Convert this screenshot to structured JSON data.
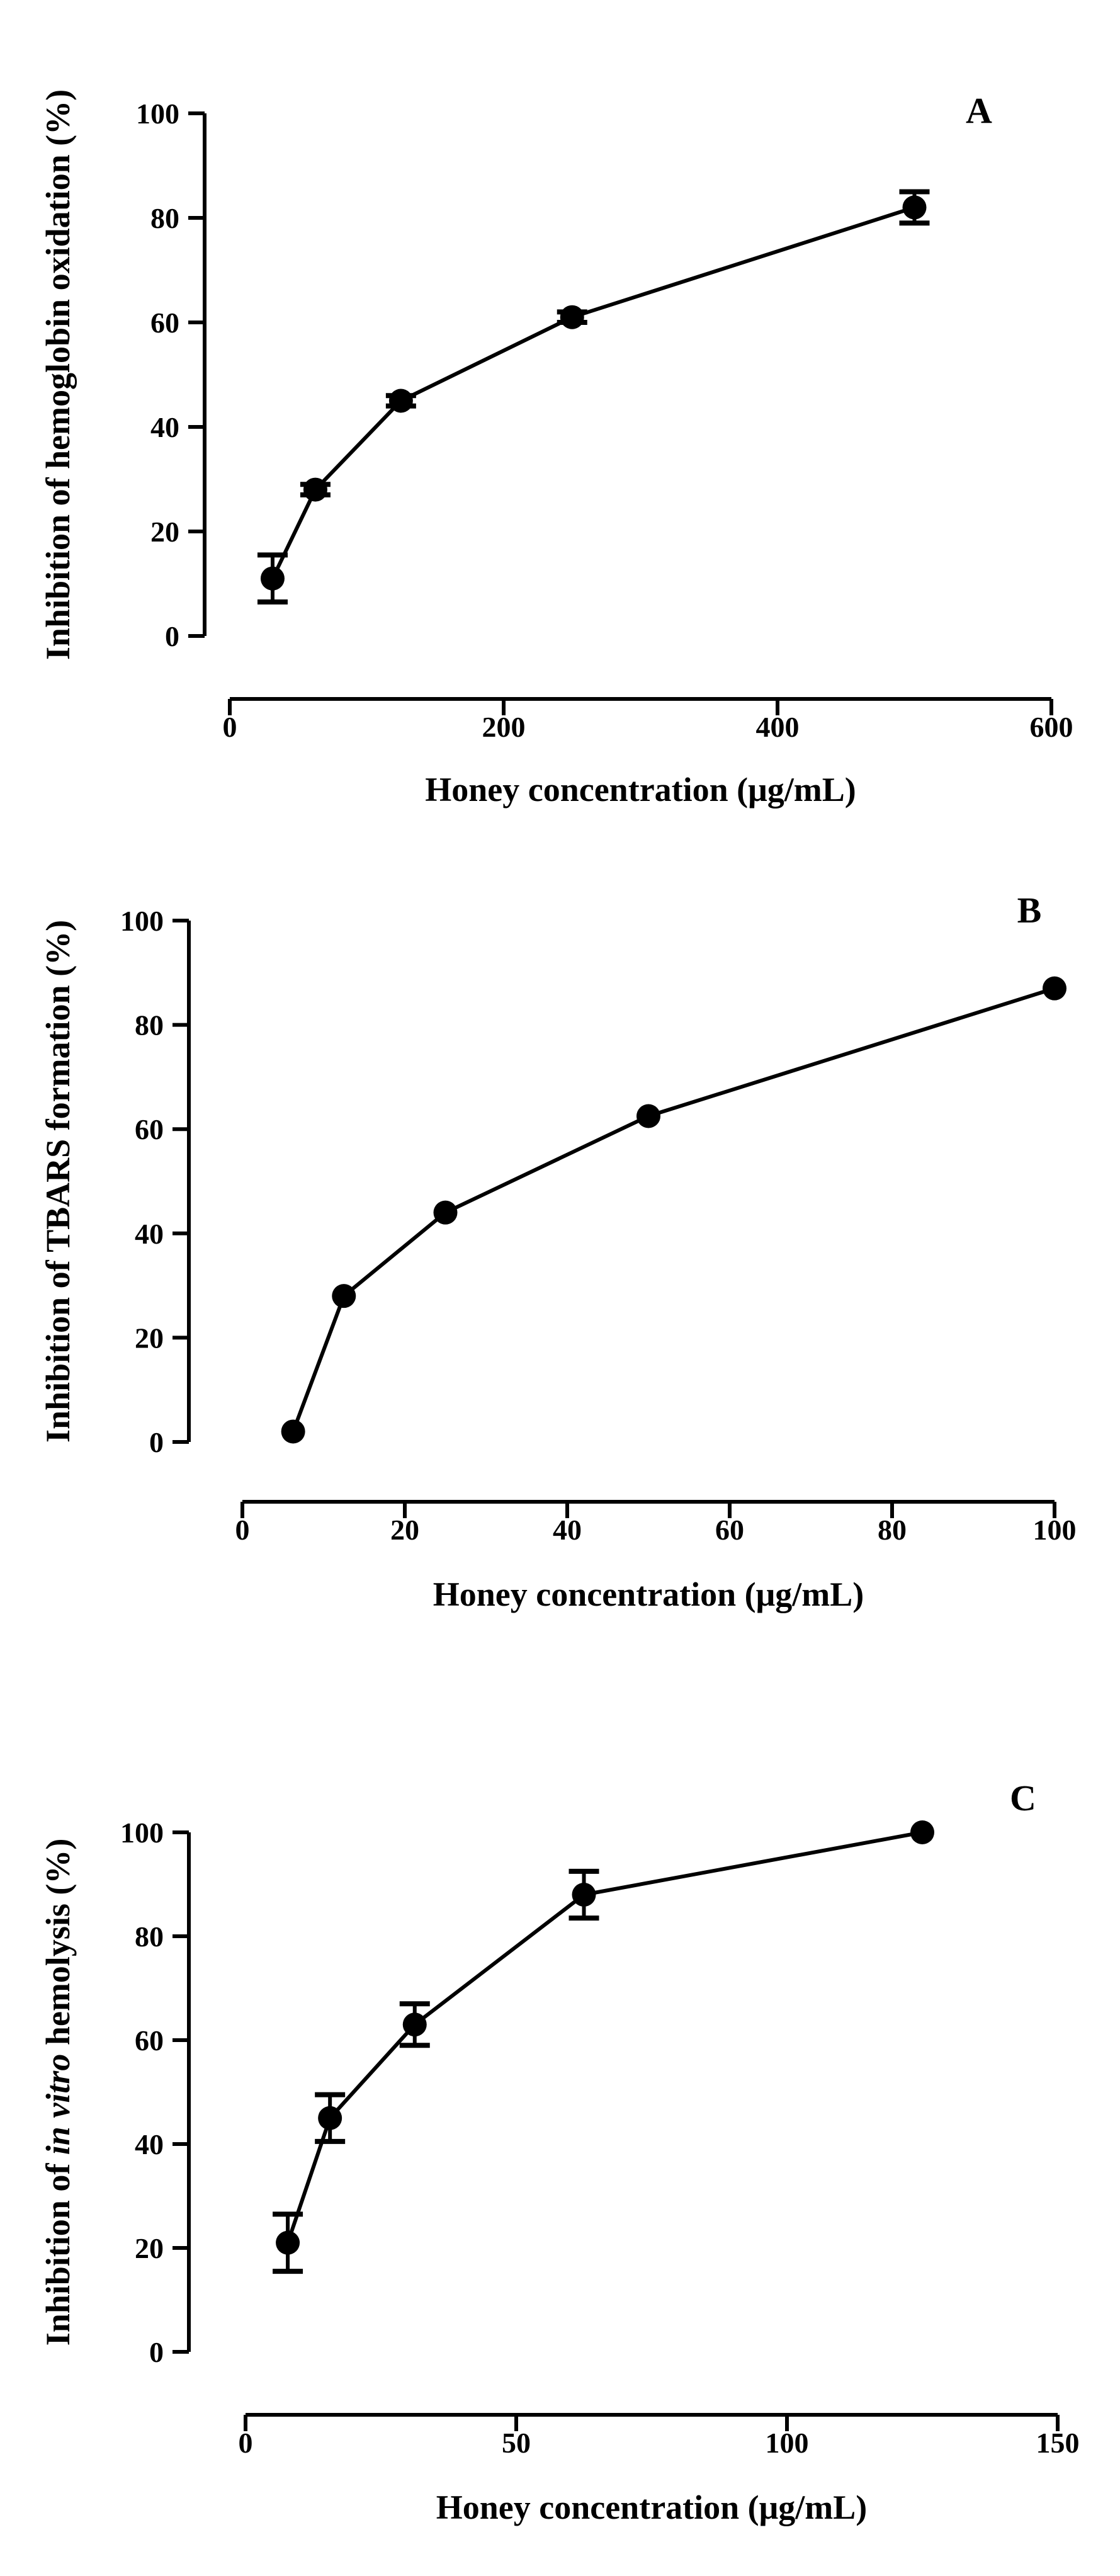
{
  "colors": {
    "ink": "#000000",
    "background": "#ffffff"
  },
  "chart_data": [
    {
      "type": "line",
      "panel_label": "A",
      "xlabel": "Honey concentration (μg/mL)",
      "ylabel": "Inhibition of hemoglobin oxidation (%)",
      "xlim": [
        0,
        600
      ],
      "ylim": [
        0,
        100
      ],
      "xticks": [
        0,
        200,
        400,
        600
      ],
      "yticks": [
        0,
        20,
        40,
        60,
        80,
        100
      ],
      "x": [
        31.25,
        62.5,
        125,
        250,
        500
      ],
      "y": [
        11,
        28,
        45,
        61,
        82
      ],
      "err": [
        4.5,
        1,
        1,
        1,
        3
      ]
    },
    {
      "type": "line",
      "panel_label": "B",
      "xlabel": "Honey concentration (μg/mL)",
      "ylabel": "Inhibition of TBARS formation (%)",
      "xlim": [
        0,
        100
      ],
      "ylim": [
        0,
        100
      ],
      "xticks": [
        0,
        20,
        40,
        60,
        80,
        100
      ],
      "yticks": [
        0,
        20,
        40,
        60,
        80,
        100
      ],
      "x": [
        6.25,
        12.5,
        25,
        50,
        100
      ],
      "y": [
        2,
        28,
        44,
        62.5,
        87
      ],
      "err": [
        0,
        0,
        0,
        0,
        0
      ]
    },
    {
      "type": "line",
      "panel_label": "C",
      "xlabel": "Honey concentration (μg/mL)",
      "ylabel_parts": [
        "Inhibition of ",
        "in vitro",
        " hemolysis (%)"
      ],
      "xlim": [
        0,
        150
      ],
      "ylim": [
        0,
        100
      ],
      "xticks": [
        0,
        50,
        100,
        150
      ],
      "yticks": [
        0,
        20,
        40,
        60,
        80,
        100
      ],
      "x": [
        7.8,
        15.6,
        31.25,
        62.5,
        125
      ],
      "y": [
        21,
        45,
        63,
        88,
        100
      ],
      "err": [
        5.5,
        4.5,
        4,
        4.5,
        0
      ]
    }
  ]
}
